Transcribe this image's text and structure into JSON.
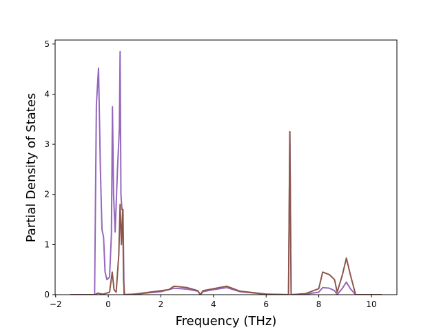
{
  "chart_data": {
    "type": "line",
    "title": "",
    "xlabel": "Frequency (THz)",
    "ylabel": "Partial Density of States",
    "xlim": [
      -2.02,
      10.97
    ],
    "ylim": [
      0,
      5.08
    ],
    "xticks": [
      -2,
      0,
      2,
      4,
      6,
      8,
      10
    ],
    "yticks": [
      0,
      1,
      2,
      3,
      4,
      5
    ],
    "grid": false,
    "series": [
      {
        "name": "purple",
        "color": "#9467bd",
        "x": [
          -1.45,
          -0.52,
          -0.45,
          -0.37,
          -0.3,
          -0.24,
          -0.18,
          -0.12,
          -0.05,
          0.05,
          0.12,
          0.16,
          0.2,
          0.26,
          0.35,
          0.42,
          0.45,
          0.48,
          0.52,
          0.56,
          0.6,
          1.0,
          2.0,
          2.5,
          3.0,
          3.4,
          3.5,
          3.6,
          4.0,
          4.5,
          5.0,
          6.0,
          6.85,
          6.9,
          6.95,
          7.5,
          8.0,
          8.15,
          8.4,
          8.6,
          8.7,
          8.9,
          9.05,
          9.2,
          9.4,
          10.4
        ],
        "y": [
          0,
          0,
          3.8,
          4.52,
          2.5,
          1.3,
          1.15,
          0.45,
          0.3,
          0.35,
          1.2,
          3.75,
          2.0,
          1.25,
          2.5,
          3.3,
          4.85,
          2.0,
          1.7,
          1.7,
          0,
          0.01,
          0.06,
          0.13,
          0.11,
          0.07,
          0,
          0.06,
          0.1,
          0.14,
          0.06,
          0.01,
          0,
          3.25,
          0,
          0.01,
          0.05,
          0.14,
          0.13,
          0.08,
          0,
          0.13,
          0.25,
          0.12,
          0,
          0
        ]
      },
      {
        "name": "brown",
        "color": "#8c564b",
        "x": [
          -1.45,
          -0.5,
          -0.4,
          -0.2,
          0.05,
          0.15,
          0.22,
          0.3,
          0.4,
          0.45,
          0.5,
          0.55,
          0.58,
          0.62,
          1.0,
          2.0,
          2.3,
          2.5,
          3.0,
          3.4,
          3.5,
          3.6,
          4.0,
          4.5,
          5.0,
          6.0,
          6.85,
          6.9,
          6.95,
          7.5,
          8.0,
          8.15,
          8.4,
          8.6,
          8.7,
          8.9,
          9.05,
          9.2,
          9.4,
          10.4
        ],
        "y": [
          0,
          0,
          0.03,
          0.01,
          0.05,
          0.45,
          0.1,
          0.05,
          0.8,
          1.8,
          1.0,
          1.7,
          0.3,
          0,
          0.01,
          0.08,
          0.1,
          0.17,
          0.14,
          0.08,
          0,
          0.08,
          0.12,
          0.17,
          0.07,
          0.01,
          0,
          3.25,
          0,
          0.02,
          0.12,
          0.45,
          0.4,
          0.3,
          0.05,
          0.4,
          0.73,
          0.4,
          0,
          0
        ]
      }
    ]
  }
}
